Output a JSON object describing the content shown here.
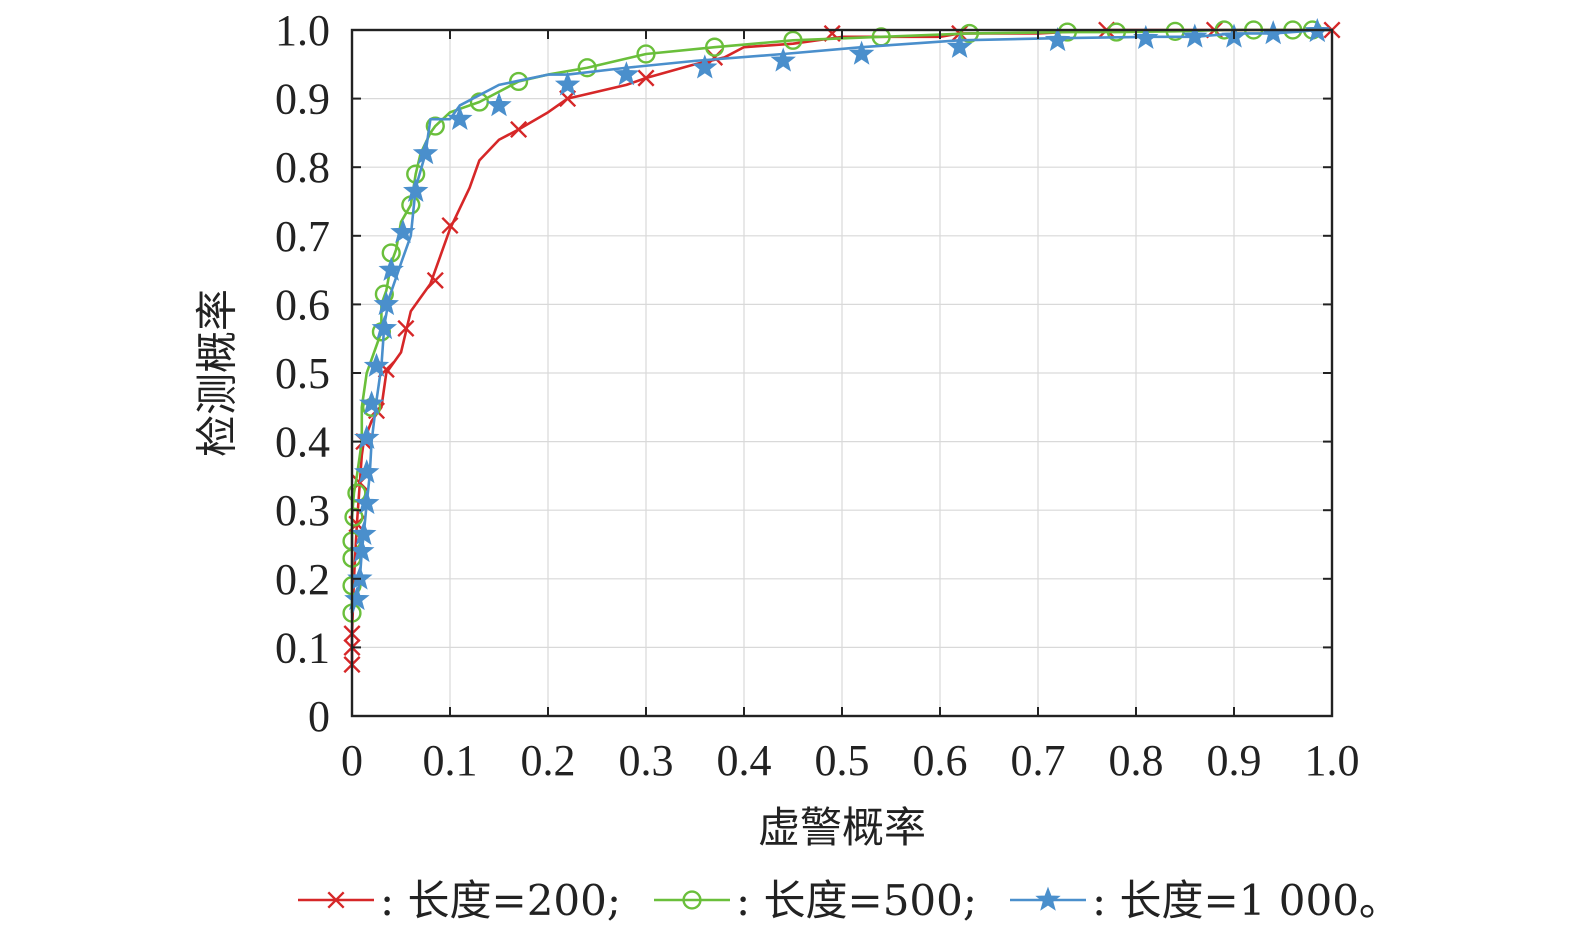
{
  "chart_data": {
    "type": "line",
    "title": "",
    "xlabel": "虚警概率",
    "ylabel": "检测概率",
    "xlim": [
      0,
      1
    ],
    "ylim": [
      0,
      1
    ],
    "xticks": [
      "0",
      "0.1",
      "0.2",
      "0.3",
      "0.4",
      "0.5",
      "0.6",
      "0.7",
      "0.8",
      "0.9",
      "1.0"
    ],
    "yticks": [
      "0",
      "0.1",
      "0.2",
      "0.3",
      "0.4",
      "0.5",
      "0.6",
      "0.7",
      "0.8",
      "0.9",
      "1.0"
    ],
    "grid": true,
    "legend_position": "bottom",
    "series": [
      {
        "name": ": 长度=200;",
        "color": "#d62728",
        "marker": "x",
        "x": [
          0.0,
          0.0,
          0.0,
          0.002,
          0.005,
          0.008,
          0.01,
          0.012,
          0.02,
          0.03,
          0.035,
          0.05,
          0.055,
          0.06,
          0.07,
          0.08,
          0.09,
          0.1,
          0.12,
          0.13,
          0.15,
          0.17,
          0.2,
          0.22,
          0.25,
          0.28,
          0.3,
          0.35,
          0.38,
          0.4,
          0.45,
          0.5,
          0.55,
          0.6,
          0.62,
          0.65,
          0.7,
          0.77,
          0.8,
          0.85,
          0.88,
          0.9,
          0.95,
          1.0
        ],
        "y": [
          0.075,
          0.1,
          0.12,
          0.2,
          0.28,
          0.34,
          0.38,
          0.4,
          0.43,
          0.45,
          0.5,
          0.53,
          0.56,
          0.59,
          0.61,
          0.63,
          0.67,
          0.71,
          0.77,
          0.81,
          0.84,
          0.855,
          0.88,
          0.9,
          0.91,
          0.92,
          0.93,
          0.95,
          0.96,
          0.975,
          0.98,
          0.99,
          0.99,
          0.99,
          0.995,
          0.995,
          0.995,
          1.0,
          1.0,
          1.0,
          1.0,
          1.0,
          1.0,
          1.0
        ],
        "markers_x": [
          0.0,
          0.0,
          0.0,
          0.005,
          0.008,
          0.012,
          0.025,
          0.035,
          0.055,
          0.085,
          0.1,
          0.17,
          0.22,
          0.3,
          0.37,
          0.49,
          0.62,
          0.77,
          0.88,
          1.0
        ],
        "markers_y": [
          0.075,
          0.1,
          0.12,
          0.28,
          0.34,
          0.4,
          0.445,
          0.505,
          0.565,
          0.635,
          0.715,
          0.855,
          0.9,
          0.93,
          0.96,
          0.995,
          0.995,
          1.0,
          1.0,
          1.0
        ]
      },
      {
        "name": ": 长度=500;",
        "color": "#6abf3b",
        "marker": "o",
        "x": [
          0.0,
          0.0,
          0.0,
          0.0,
          0.0,
          0.002,
          0.005,
          0.01,
          0.01,
          0.015,
          0.02,
          0.03,
          0.03,
          0.035,
          0.04,
          0.045,
          0.05,
          0.06,
          0.065,
          0.07,
          0.08,
          0.085,
          0.1,
          0.13,
          0.15,
          0.17,
          0.2,
          0.24,
          0.3,
          0.37,
          0.45,
          0.54,
          0.63,
          0.73,
          0.78,
          0.84,
          0.89,
          0.92,
          0.96,
          0.98,
          1.0
        ],
        "y": [
          0.15,
          0.19,
          0.23,
          0.26,
          0.29,
          0.325,
          0.35,
          0.4,
          0.45,
          0.5,
          0.52,
          0.56,
          0.6,
          0.62,
          0.66,
          0.68,
          0.72,
          0.745,
          0.79,
          0.82,
          0.85,
          0.86,
          0.88,
          0.895,
          0.91,
          0.925,
          0.935,
          0.945,
          0.965,
          0.975,
          0.985,
          0.99,
          0.995,
          0.997,
          0.997,
          0.998,
          1.0,
          1.0,
          1.0,
          1.0,
          1.0
        ],
        "markers_x": [
          0.0,
          0.0,
          0.0,
          0.0,
          0.002,
          0.005,
          0.02,
          0.03,
          0.033,
          0.04,
          0.06,
          0.065,
          0.085,
          0.13,
          0.17,
          0.24,
          0.3,
          0.37,
          0.45,
          0.54,
          0.63,
          0.73,
          0.78,
          0.84,
          0.89,
          0.92,
          0.96,
          0.98
        ],
        "markers_y": [
          0.15,
          0.19,
          0.23,
          0.255,
          0.29,
          0.325,
          0.45,
          0.56,
          0.615,
          0.675,
          0.745,
          0.79,
          0.86,
          0.895,
          0.925,
          0.945,
          0.965,
          0.975,
          0.985,
          0.99,
          0.995,
          0.997,
          0.997,
          0.998,
          1.0,
          1.0,
          1.0,
          1.0
        ]
      },
      {
        "name": ": 长度=1 000。",
        "color": "#4a8fcc",
        "marker": "star",
        "x": [
          0.0,
          0.005,
          0.008,
          0.01,
          0.012,
          0.015,
          0.018,
          0.02,
          0.025,
          0.03,
          0.033,
          0.038,
          0.05,
          0.06,
          0.065,
          0.075,
          0.08,
          0.1,
          0.11,
          0.15,
          0.2,
          0.22,
          0.28,
          0.35,
          0.44,
          0.52,
          0.62,
          0.72,
          0.81,
          0.86,
          0.9,
          0.94,
          0.97,
          0.985,
          1.0
        ],
        "y": [
          0.15,
          0.17,
          0.2,
          0.24,
          0.265,
          0.31,
          0.35,
          0.4,
          0.46,
          0.51,
          0.57,
          0.61,
          0.66,
          0.7,
          0.77,
          0.82,
          0.87,
          0.87,
          0.89,
          0.92,
          0.935,
          0.935,
          0.945,
          0.955,
          0.965,
          0.975,
          0.985,
          0.988,
          0.99,
          0.99,
          0.995,
          0.995,
          0.998,
          1.0,
          1.0
        ],
        "markers_x": [
          0.005,
          0.008,
          0.01,
          0.012,
          0.015,
          0.015,
          0.015,
          0.02,
          0.025,
          0.033,
          0.035,
          0.04,
          0.052,
          0.065,
          0.075,
          0.11,
          0.15,
          0.22,
          0.28,
          0.36,
          0.44,
          0.52,
          0.62,
          0.72,
          0.81,
          0.86,
          0.9,
          0.94,
          0.985
        ],
        "markers_y": [
          0.17,
          0.2,
          0.24,
          0.265,
          0.31,
          0.355,
          0.405,
          0.455,
          0.51,
          0.565,
          0.6,
          0.65,
          0.705,
          0.765,
          0.82,
          0.87,
          0.89,
          0.92,
          0.935,
          0.945,
          0.955,
          0.965,
          0.975,
          0.985,
          0.988,
          0.99,
          0.99,
          0.995,
          0.998
        ]
      }
    ]
  }
}
